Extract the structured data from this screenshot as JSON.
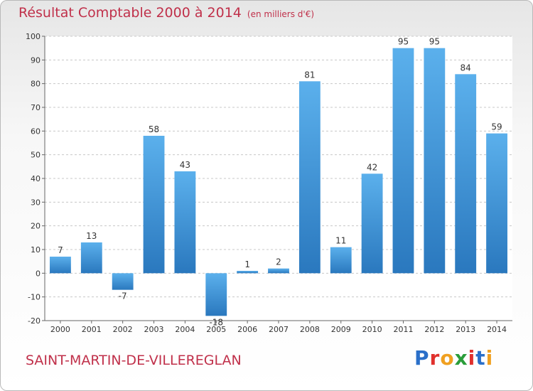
{
  "header": {
    "title": "Résultat Comptable 2000 à 2014",
    "subtitle": "(en milliers d'€)"
  },
  "footer": {
    "commune": "SAINT-MARTIN-DE-VILLEREGLAN",
    "logo_text": "Proxiti"
  },
  "colors": {
    "bar": "#4a9ede",
    "bar_dark": "#2a78be",
    "title": "#c0304a"
  },
  "chart_data": {
    "type": "bar",
    "title": "Résultat Comptable 2000 à 2014",
    "xlabel": "",
    "ylabel": "",
    "categories": [
      "2000",
      "2001",
      "2002",
      "2003",
      "2004",
      "2005",
      "2006",
      "2007",
      "2008",
      "2009",
      "2010",
      "2011",
      "2012",
      "2013",
      "2014"
    ],
    "values": [
      7,
      13,
      -7,
      58,
      43,
      -18,
      1,
      2,
      81,
      11,
      42,
      95,
      95,
      84,
      59
    ],
    "ylim": [
      -20,
      100
    ],
    "yticks": [
      -20,
      -10,
      0,
      10,
      20,
      30,
      40,
      50,
      60,
      70,
      80,
      90,
      100
    ],
    "grid": true,
    "legend": "none"
  }
}
